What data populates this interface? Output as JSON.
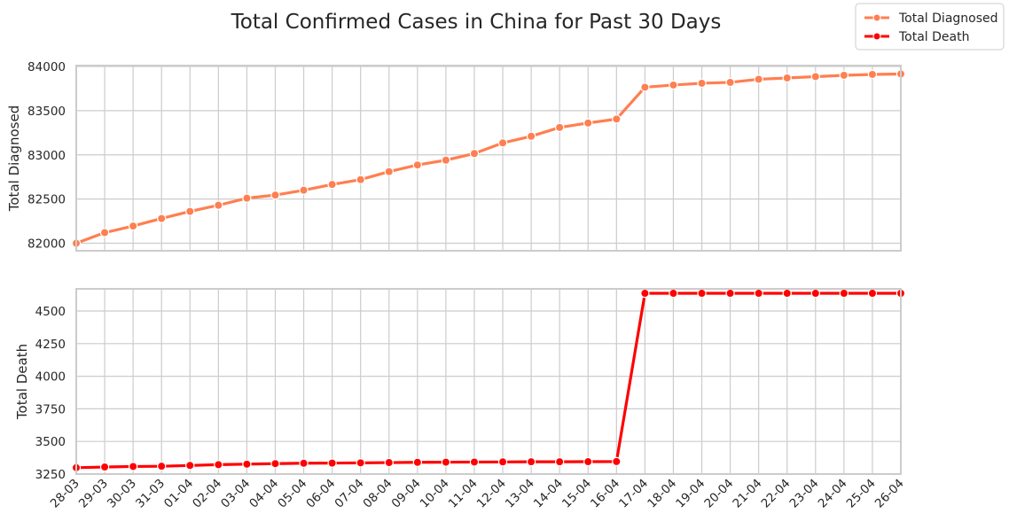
{
  "chart_data": {
    "type": "line",
    "title": "Total Confirmed Cases in China for Past 30 Days",
    "categories": [
      "28-03",
      "29-03",
      "30-03",
      "31-03",
      "01-04",
      "02-04",
      "03-04",
      "04-04",
      "05-04",
      "06-04",
      "07-04",
      "08-04",
      "09-04",
      "10-04",
      "11-04",
      "12-04",
      "13-04",
      "14-04",
      "15-04",
      "16-04",
      "17-04",
      "18-04",
      "19-04",
      "20-04",
      "21-04",
      "22-04",
      "23-04",
      "24-04",
      "25-04",
      "26-04"
    ],
    "legend": {
      "position": "top-right",
      "items": [
        "Total Diagnosed",
        "Total Death"
      ]
    },
    "panels": [
      {
        "ylabel": "Total Diagnosed",
        "ylim": [
          81915,
          84010
        ],
        "yticks": [
          82000,
          82500,
          83000,
          83500,
          84000
        ],
        "series": [
          {
            "name": "Total Diagnosed",
            "color": "#ff7f50",
            "values": [
              82000,
              82120,
              82195,
              82280,
              82360,
              82430,
              82510,
              82545,
              82600,
              82665,
              82720,
              82810,
              82885,
              82940,
              83015,
              83135,
              83210,
              83310,
              83360,
              83405,
              83765,
              83790,
              83810,
              83820,
              83855,
              83870,
              83885,
              83900,
              83910,
              83915
            ]
          }
        ]
      },
      {
        "ylabel": "Total Death",
        "ylim": [
          3250,
          4670
        ],
        "yticks": [
          3250,
          3500,
          3750,
          4000,
          4250,
          4500
        ],
        "series": [
          {
            "name": "Total Death",
            "color": "#ff0000",
            "values": [
              3299,
              3304,
              3308,
              3310,
              3316,
              3322,
              3326,
              3330,
              3333,
              3334,
              3336,
              3338,
              3340,
              3341,
              3342,
              3343,
              3344,
              3344,
              3345,
              3346,
              4636,
              4636,
              4636,
              4636,
              4636,
              4636,
              4636,
              4636,
              4636,
              4636
            ]
          }
        ]
      }
    ]
  }
}
